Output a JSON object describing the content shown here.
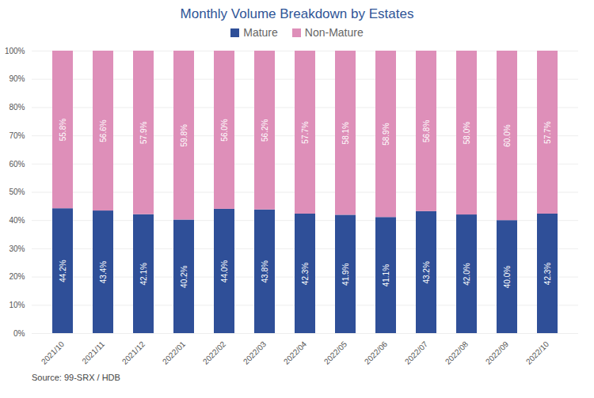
{
  "chart_data": {
    "type": "bar",
    "title": "Monthly Volume Breakdown by Estates",
    "caption": "Source: 99-SRX / HDB",
    "stacked": true,
    "grid": true,
    "legend": "top",
    "data_labels": true,
    "categories": [
      "2021/10",
      "2021/11",
      "2021/12",
      "2022/01",
      "2022/02",
      "2022/03",
      "2022/04",
      "2022/05",
      "2022/06",
      "2022/07",
      "2022/08",
      "2022/09",
      "2022/10"
    ],
    "series": [
      {
        "name": "Mature",
        "color": "#2f4f98",
        "values": [
          44.2,
          43.4,
          42.1,
          40.2,
          44.0,
          43.8,
          42.3,
          41.9,
          41.1,
          43.2,
          42.0,
          40.0,
          42.3
        ],
        "value_labels": [
          "44.2%",
          "43.4%",
          "42.1%",
          "40.2%",
          "44.0%",
          "43.8%",
          "42.3%",
          "41.9%",
          "41.1%",
          "43.2%",
          "42.0%",
          "40.0%",
          "42.3%"
        ]
      },
      {
        "name": "Non-Mature",
        "color": "#de8fb9",
        "values": [
          55.8,
          56.6,
          57.9,
          59.8,
          56.0,
          56.2,
          57.7,
          58.1,
          58.9,
          56.8,
          58.0,
          60.0,
          57.7
        ],
        "value_labels": [
          "55.8%",
          "56.6%",
          "57.9%",
          "59.8%",
          "56.0%",
          "56.2%",
          "57.7%",
          "58.1%",
          "58.9%",
          "56.8%",
          "58.0%",
          "60.0%",
          "57.7%"
        ]
      }
    ],
    "ylim": [
      0,
      100
    ],
    "yticks": [
      {
        "value": 0,
        "label": "0%"
      },
      {
        "value": 10,
        "label": "10%"
      },
      {
        "value": 20,
        "label": "20%"
      },
      {
        "value": 30,
        "label": "30%"
      },
      {
        "value": 40,
        "label": "40%"
      },
      {
        "value": 50,
        "label": "50%"
      },
      {
        "value": 60,
        "label": "60%"
      },
      {
        "value": 70,
        "label": "70%"
      },
      {
        "value": 80,
        "label": "80%"
      },
      {
        "value": 90,
        "label": "90%"
      },
      {
        "value": 100,
        "label": "100%"
      }
    ]
  }
}
